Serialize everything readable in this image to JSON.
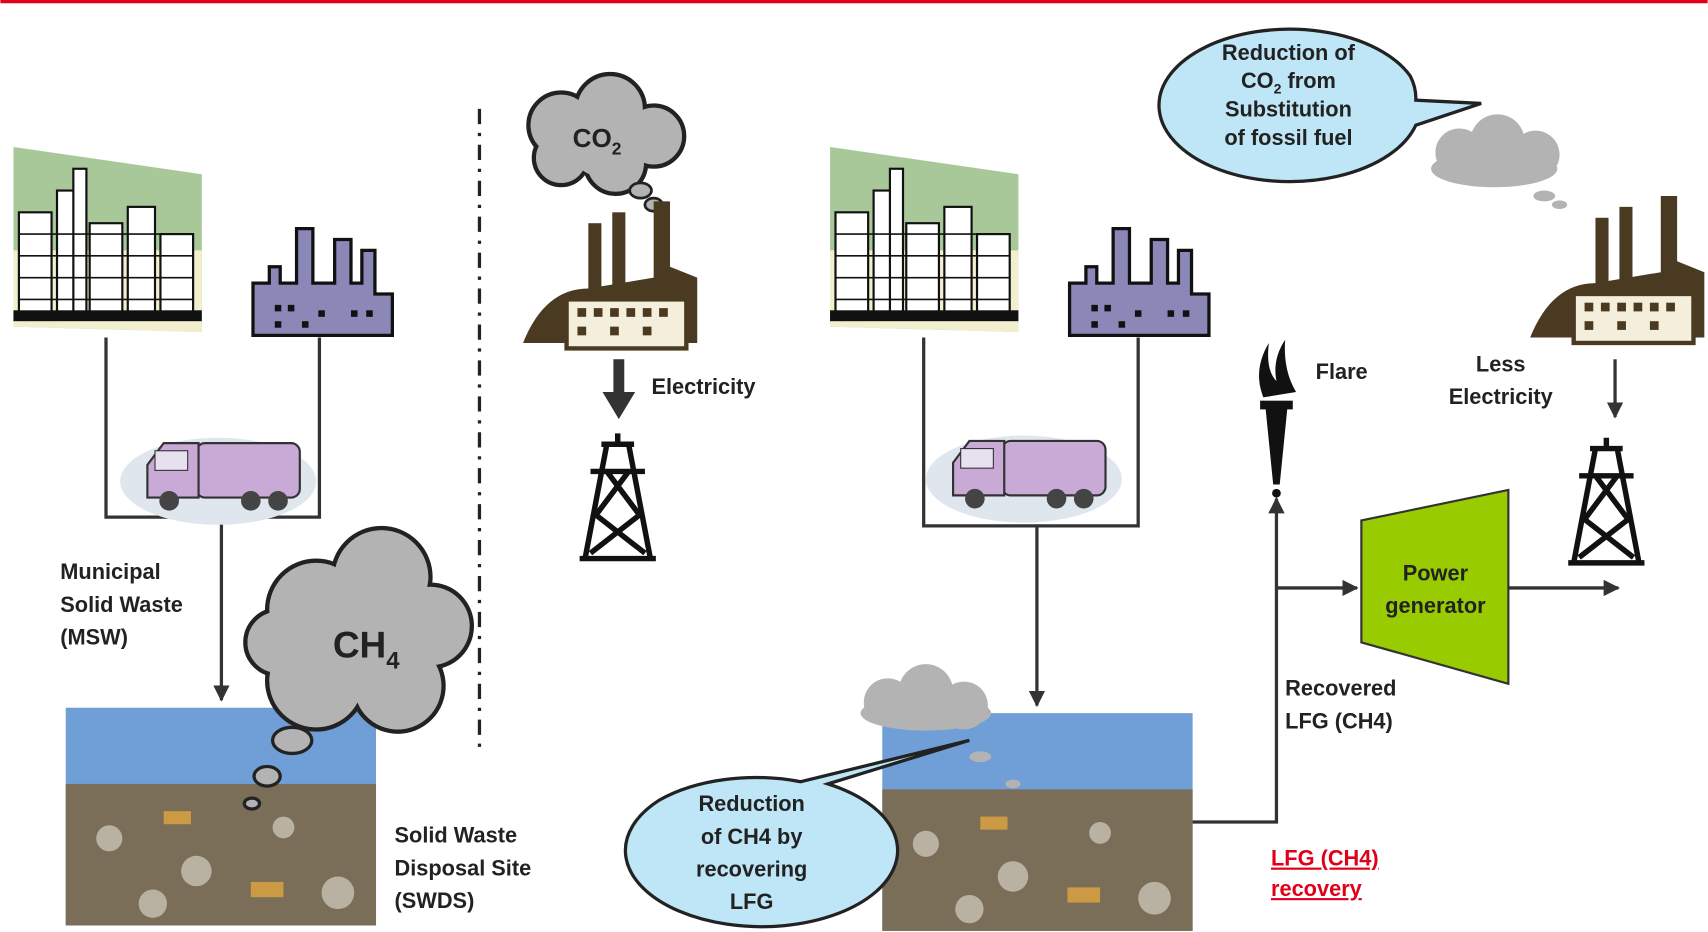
{
  "left": {
    "msw_label": [
      "Municipal",
      "Solid Waste",
      "(MSW)"
    ],
    "ch4_cloud": {
      "main": "CH",
      "sub": "4"
    },
    "swds_label": [
      "Solid Waste",
      "Disposal Site",
      "(SWDS)"
    ]
  },
  "middle": {
    "co2_cloud": {
      "main": "CO",
      "sub": "2"
    },
    "electricity": "Electricity"
  },
  "right": {
    "substitution_bubble": {
      "line1": "Reduction of",
      "line2_main": "CO",
      "line2_sub": "2",
      "line2_rest": " from",
      "line3": "Substitution",
      "line4": "of fossil fuel"
    },
    "flare": "Flare",
    "less_electricity": [
      "Less",
      "Electricity"
    ],
    "power_generator": [
      "Power",
      "generator"
    ],
    "recovered_lfg": [
      "Recovered",
      "LFG (CH4)"
    ],
    "lfg_recovery": [
      "LFG (CH4)",
      "recovery"
    ],
    "reduction_bubble": [
      "Reduction",
      "of CH4 by",
      "recovering",
      "LFG"
    ]
  }
}
